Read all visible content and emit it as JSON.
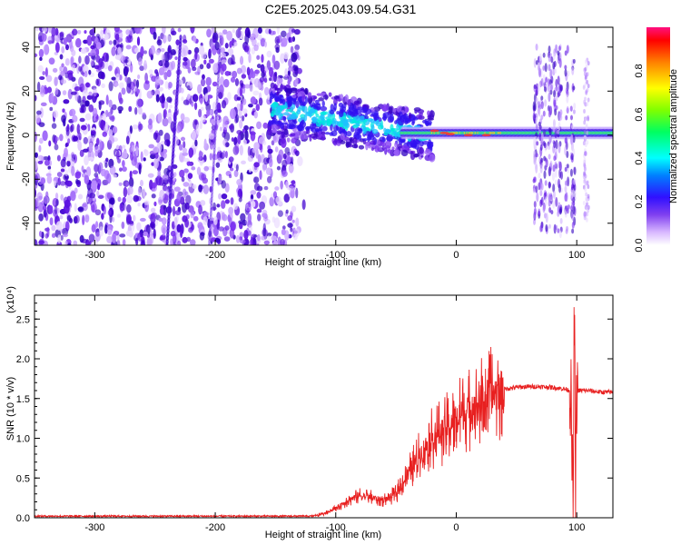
{
  "page_title": "C2E5.2025.043.09.54.G31",
  "chart_data": [
    {
      "type": "heatmap",
      "xlabel": "Height of straight line (km)",
      "ylabel": "Frequency (Hz)",
      "xlim": [
        -350,
        130
      ],
      "ylim": [
        -50,
        49
      ],
      "xticks": [
        -300,
        -200,
        -100,
        0,
        100
      ],
      "yticks": [
        -40,
        -20,
        0,
        20,
        40
      ],
      "colorbar": {
        "label": "Normalized spectral amplitude",
        "range": [
          0.0,
          1.0
        ],
        "ticks": [
          0.0,
          0.2,
          0.4,
          0.6,
          0.8
        ],
        "colormap": [
          "#ffffff",
          "#b070ff",
          "#5000d8",
          "#0000ff",
          "#00ffff",
          "#00ff00",
          "#ffff00",
          "#ff0000",
          "#ff1080"
        ]
      },
      "regions": [
        {
          "x": [
            -350,
            -130
          ],
          "description_value": "broadband noise across all frequencies",
          "peak_amplitude": 0.25
        },
        {
          "x": [
            -155,
            -20
          ],
          "center_freq": [
            12,
            0
          ],
          "peak_amplitude": 0.45
        },
        {
          "x": [
            -20,
            130
          ],
          "center_freq": 1,
          "peak_amplitude": 0.85
        },
        {
          "x": [
            63,
            98
          ],
          "spread_freq": [
            -45,
            40
          ],
          "peak_amplitude": 0.25
        }
      ]
    },
    {
      "type": "line",
      "xlabel": "Height of straight line (km)",
      "ylabel": "SNR (10 * v/v)",
      "y_multiplier": "(x10⁴)",
      "xlim": [
        -350,
        130
      ],
      "ylim": [
        0,
        2.8
      ],
      "xticks": [
        -300,
        -200,
        -100,
        0,
        100
      ],
      "yticks": [
        0.0,
        0.5,
        1.0,
        1.5,
        2.0,
        2.5
      ],
      "series": [
        {
          "color": "#e82020",
          "points": [
            [
              -350,
              0.02
            ],
            [
              -300,
              0.02
            ],
            [
              -250,
              0.02
            ],
            [
              -200,
              0.02
            ],
            [
              -150,
              0.02
            ],
            [
              -120,
              0.02
            ],
            [
              -110,
              0.05
            ],
            [
              -100,
              0.12
            ],
            [
              -90,
              0.22
            ],
            [
              -80,
              0.28
            ],
            [
              -70,
              0.25
            ],
            [
              -60,
              0.22
            ],
            [
              -50,
              0.3
            ],
            [
              -40,
              0.55
            ],
            [
              -30,
              0.8
            ],
            [
              -20,
              1.0
            ],
            [
              -10,
              1.1
            ],
            [
              0,
              1.25
            ],
            [
              10,
              1.35
            ],
            [
              20,
              1.45
            ],
            [
              30,
              1.55
            ],
            [
              40,
              1.62
            ],
            [
              50,
              1.64
            ],
            [
              60,
              1.65
            ],
            [
              70,
              1.65
            ],
            [
              80,
              1.64
            ],
            [
              90,
              1.62
            ],
            [
              95,
              1.6
            ],
            [
              97,
              0.1
            ],
            [
              98,
              2.75
            ],
            [
              99,
              0.2
            ],
            [
              100,
              1.6
            ],
            [
              110,
              1.6
            ],
            [
              120,
              1.58
            ],
            [
              130,
              1.58
            ]
          ]
        }
      ]
    }
  ]
}
